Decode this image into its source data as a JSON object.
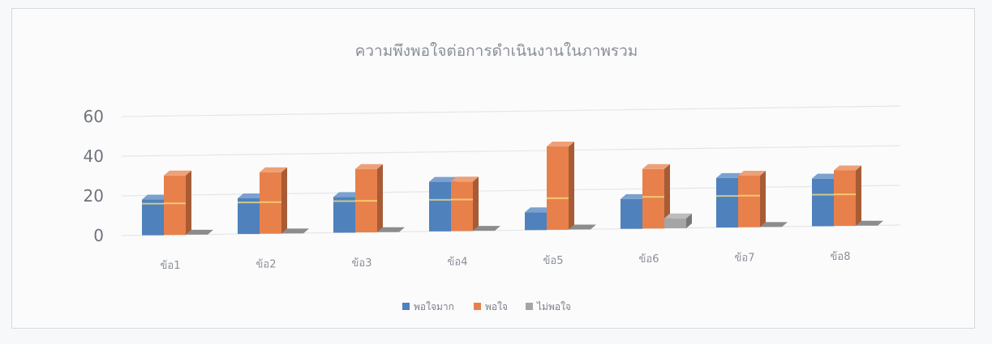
{
  "chart_data": {
    "type": "bar",
    "title": "ความพึงพอใจต่อการดำเนินงานในภาพรวม",
    "categories": [
      "ข้อ1",
      "ข้อ2",
      "ข้อ3",
      "ข้อ4",
      "ข้อ5",
      "ข้อ6",
      "ข้อ7",
      "ข้อ8"
    ],
    "series": [
      {
        "name": "พอใจมาก",
        "values": [
          18,
          18,
          18,
          25,
          9,
          15,
          25,
          24
        ],
        "color": "#4f81bd"
      },
      {
        "name": "พอใจ",
        "values": [
          30,
          31,
          32,
          25,
          42,
          30,
          26,
          28
        ],
        "color": "#e8804b"
      },
      {
        "name": "ไม่พอใจ",
        "values": [
          0,
          0,
          0,
          0,
          0,
          5,
          0,
          0
        ],
        "color": "#a5a5a5"
      }
    ],
    "yticks": [
      "0",
      "20",
      "40",
      "60"
    ],
    "ylim": [
      0,
      60
    ],
    "grid": true,
    "legend_position": "bottom",
    "style": "3d-clustered-column"
  }
}
